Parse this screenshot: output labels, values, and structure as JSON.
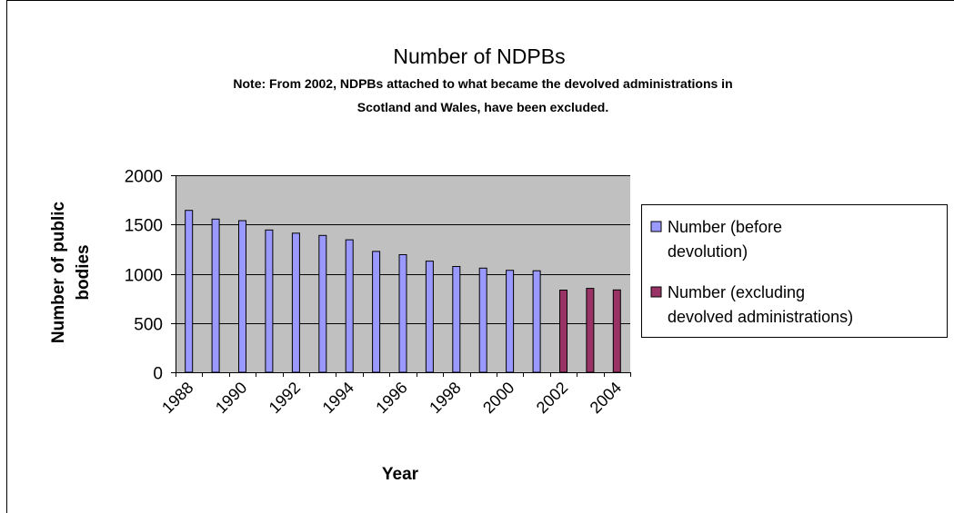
{
  "chart_data": {
    "type": "bar",
    "title": "Number of NDPBs",
    "subtitle_lines": [
      "Note: From 2002, NDPBs attached to what became the devolved administrations in",
      "Scotland and Wales, have been excluded."
    ],
    "xlabel": "Year",
    "ylabel": "Number of public bodies",
    "ylabel_lines": [
      "Number of public",
      "bodies"
    ],
    "ylim": [
      0,
      2000
    ],
    "yticks": [
      0,
      500,
      1000,
      1500,
      2000
    ],
    "xtick_labels": [
      "1988",
      "1990",
      "1992",
      "1994",
      "1996",
      "1998",
      "2000",
      "2002",
      "2004"
    ],
    "categories": [
      "1988",
      "1989",
      "1990",
      "1991",
      "1992",
      "1993",
      "1994",
      "1995",
      "1996",
      "1997",
      "1998",
      "1999",
      "2000",
      "2001",
      "2002",
      "2003",
      "2004"
    ],
    "grid": true,
    "legend_position": "right",
    "series": [
      {
        "name": "Number (before devolution)",
        "legend_lines": [
          "Number (before",
          "devolution)"
        ],
        "color": "#9999ff",
        "values": [
          1643,
          1555,
          1539,
          1444,
          1412,
          1389,
          1345,
          1227,
          1194,
          1128,
          1074,
          1057,
          1035,
          1030,
          null,
          null,
          null
        ]
      },
      {
        "name": "Number (excluding devolved administrations)",
        "legend_lines": [
          "Number (excluding",
          "devolved administrations)"
        ],
        "color": "#993366",
        "values": [
          null,
          null,
          null,
          null,
          null,
          null,
          null,
          null,
          null,
          null,
          null,
          null,
          null,
          null,
          834,
          852,
          836
        ]
      }
    ],
    "plot_background": "#c0c0c0",
    "grid_color": "#000000"
  }
}
